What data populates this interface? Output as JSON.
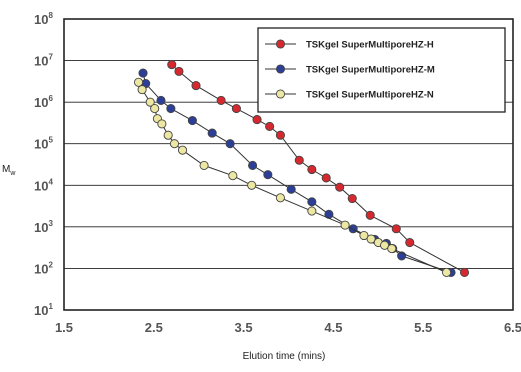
{
  "chart_data": {
    "type": "scatter",
    "title": "",
    "xlabel": "Elution time (mins)",
    "ylabel": "M",
    "ylabel_subscript": "w",
    "y_scale": "log",
    "xlim": [
      1.5,
      6.5
    ],
    "ylim": [
      10,
      100000000
    ],
    "x_ticks": [
      "1.5",
      "2.5",
      "3.5",
      "4.5",
      "5.5",
      "6.5"
    ],
    "y_ticks": [
      {
        "base": "10",
        "exp": "8"
      },
      {
        "base": "10",
        "exp": "7"
      },
      {
        "base": "10",
        "exp": "6"
      },
      {
        "base": "10",
        "exp": "5"
      },
      {
        "base": "10",
        "exp": "4"
      },
      {
        "base": "10",
        "exp": "3"
      },
      {
        "base": "10",
        "exp": "2"
      },
      {
        "base": "10",
        "exp": "1"
      }
    ],
    "grid": "horizontal",
    "legend_position": "top-right",
    "series": [
      {
        "name": "TSKgel SuperMultiporeHZ-H",
        "color": "#d7282f",
        "x": [
          2.7,
          2.78,
          2.97,
          3.25,
          3.42,
          3.65,
          3.79,
          3.91,
          4.12,
          4.26,
          4.42,
          4.57,
          4.71,
          4.91,
          5.2,
          5.35,
          5.96
        ],
        "y": [
          8000000,
          5500000,
          2500000,
          1100000,
          700000,
          380000,
          260000,
          160000,
          40000,
          24000,
          15000,
          9000,
          4800,
          1900,
          900,
          420,
          80
        ]
      },
      {
        "name": "TSKgel SuperMultiporeHZ-M",
        "color": "#2c3f98",
        "x": [
          2.38,
          2.41,
          2.58,
          2.69,
          2.93,
          3.15,
          3.35,
          3.6,
          3.77,
          4.03,
          4.26,
          4.45,
          4.72,
          4.96,
          5.09,
          5.16,
          5.26,
          5.81
        ],
        "y": [
          5000000,
          2800000,
          1100000,
          700000,
          360000,
          180000,
          100000,
          30000,
          18000,
          8000,
          4000,
          2000,
          900,
          500,
          400,
          300,
          200,
          80
        ]
      },
      {
        "name": "TSKgel SuperMultiporeHZ-N",
        "color": "#ece7a2",
        "x": [
          2.33,
          2.37,
          2.46,
          2.51,
          2.54,
          2.59,
          2.66,
          2.73,
          2.82,
          3.06,
          3.38,
          3.59,
          3.91,
          4.26,
          4.63,
          4.84,
          4.92,
          5.0,
          5.07,
          5.15,
          5.76
        ],
        "y": [
          3000000,
          2000000,
          1000000,
          700000,
          400000,
          300000,
          160000,
          100000,
          70000,
          30000,
          17000,
          10000,
          5000,
          2400,
          1100,
          620,
          510,
          420,
          360,
          300,
          80
        ]
      }
    ]
  }
}
